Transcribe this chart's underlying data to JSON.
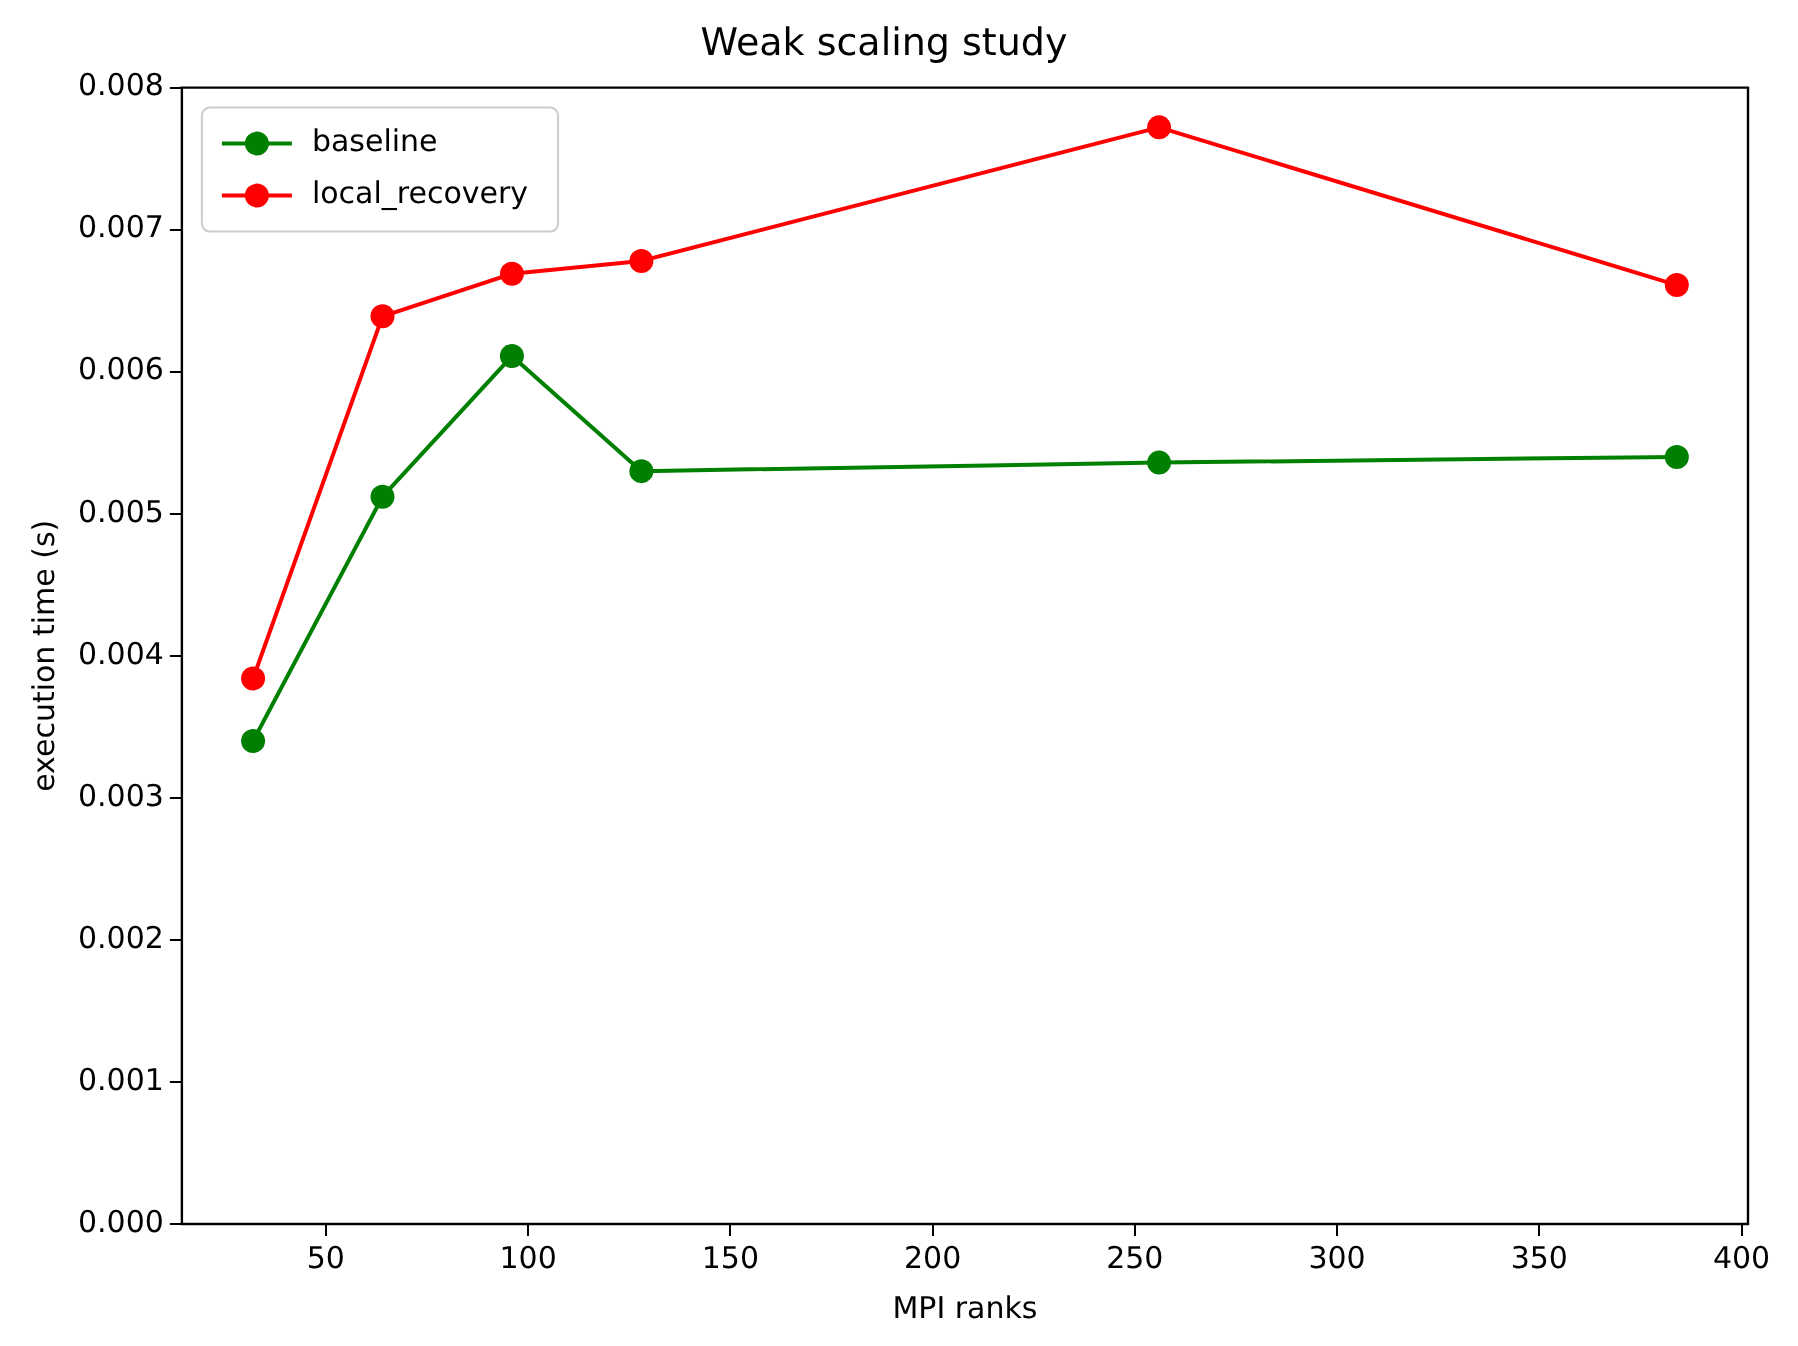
{
  "chart_data": {
    "type": "line",
    "title": "Weak scaling study",
    "xlabel": "MPI ranks",
    "ylabel": "execution time (s)",
    "x": [
      32,
      64,
      96,
      128,
      256,
      384
    ],
    "series": [
      {
        "name": "baseline",
        "color": "#008000",
        "values": [
          0.0034,
          0.00512,
          0.00611,
          0.0053,
          0.00536,
          0.0054
        ]
      },
      {
        "name": "local_recovery",
        "color": "#ff0000",
        "values": [
          0.00384,
          0.00639,
          0.00669,
          0.00678,
          0.00772,
          0.00661
        ]
      }
    ],
    "xlim": [
      14.4,
      401.6
    ],
    "xticks": [
      50,
      100,
      150,
      200,
      250,
      300,
      350,
      400
    ],
    "ylim": [
      0,
      0.008
    ],
    "yticks": [
      {
        "value": 0,
        "label": "0.000"
      },
      {
        "value": 0.001,
        "label": "0.001"
      },
      {
        "value": 0.002,
        "label": "0.002"
      },
      {
        "value": 0.003,
        "label": "0.003"
      },
      {
        "value": 0.004,
        "label": "0.004"
      },
      {
        "value": 0.005,
        "label": "0.005"
      },
      {
        "value": 0.006,
        "label": "0.006"
      },
      {
        "value": 0.007,
        "label": "0.007"
      },
      {
        "value": 0.008,
        "label": "0.008"
      }
    ],
    "grid": false,
    "legend": "top left",
    "marker": "circle",
    "line_style": "solid"
  }
}
